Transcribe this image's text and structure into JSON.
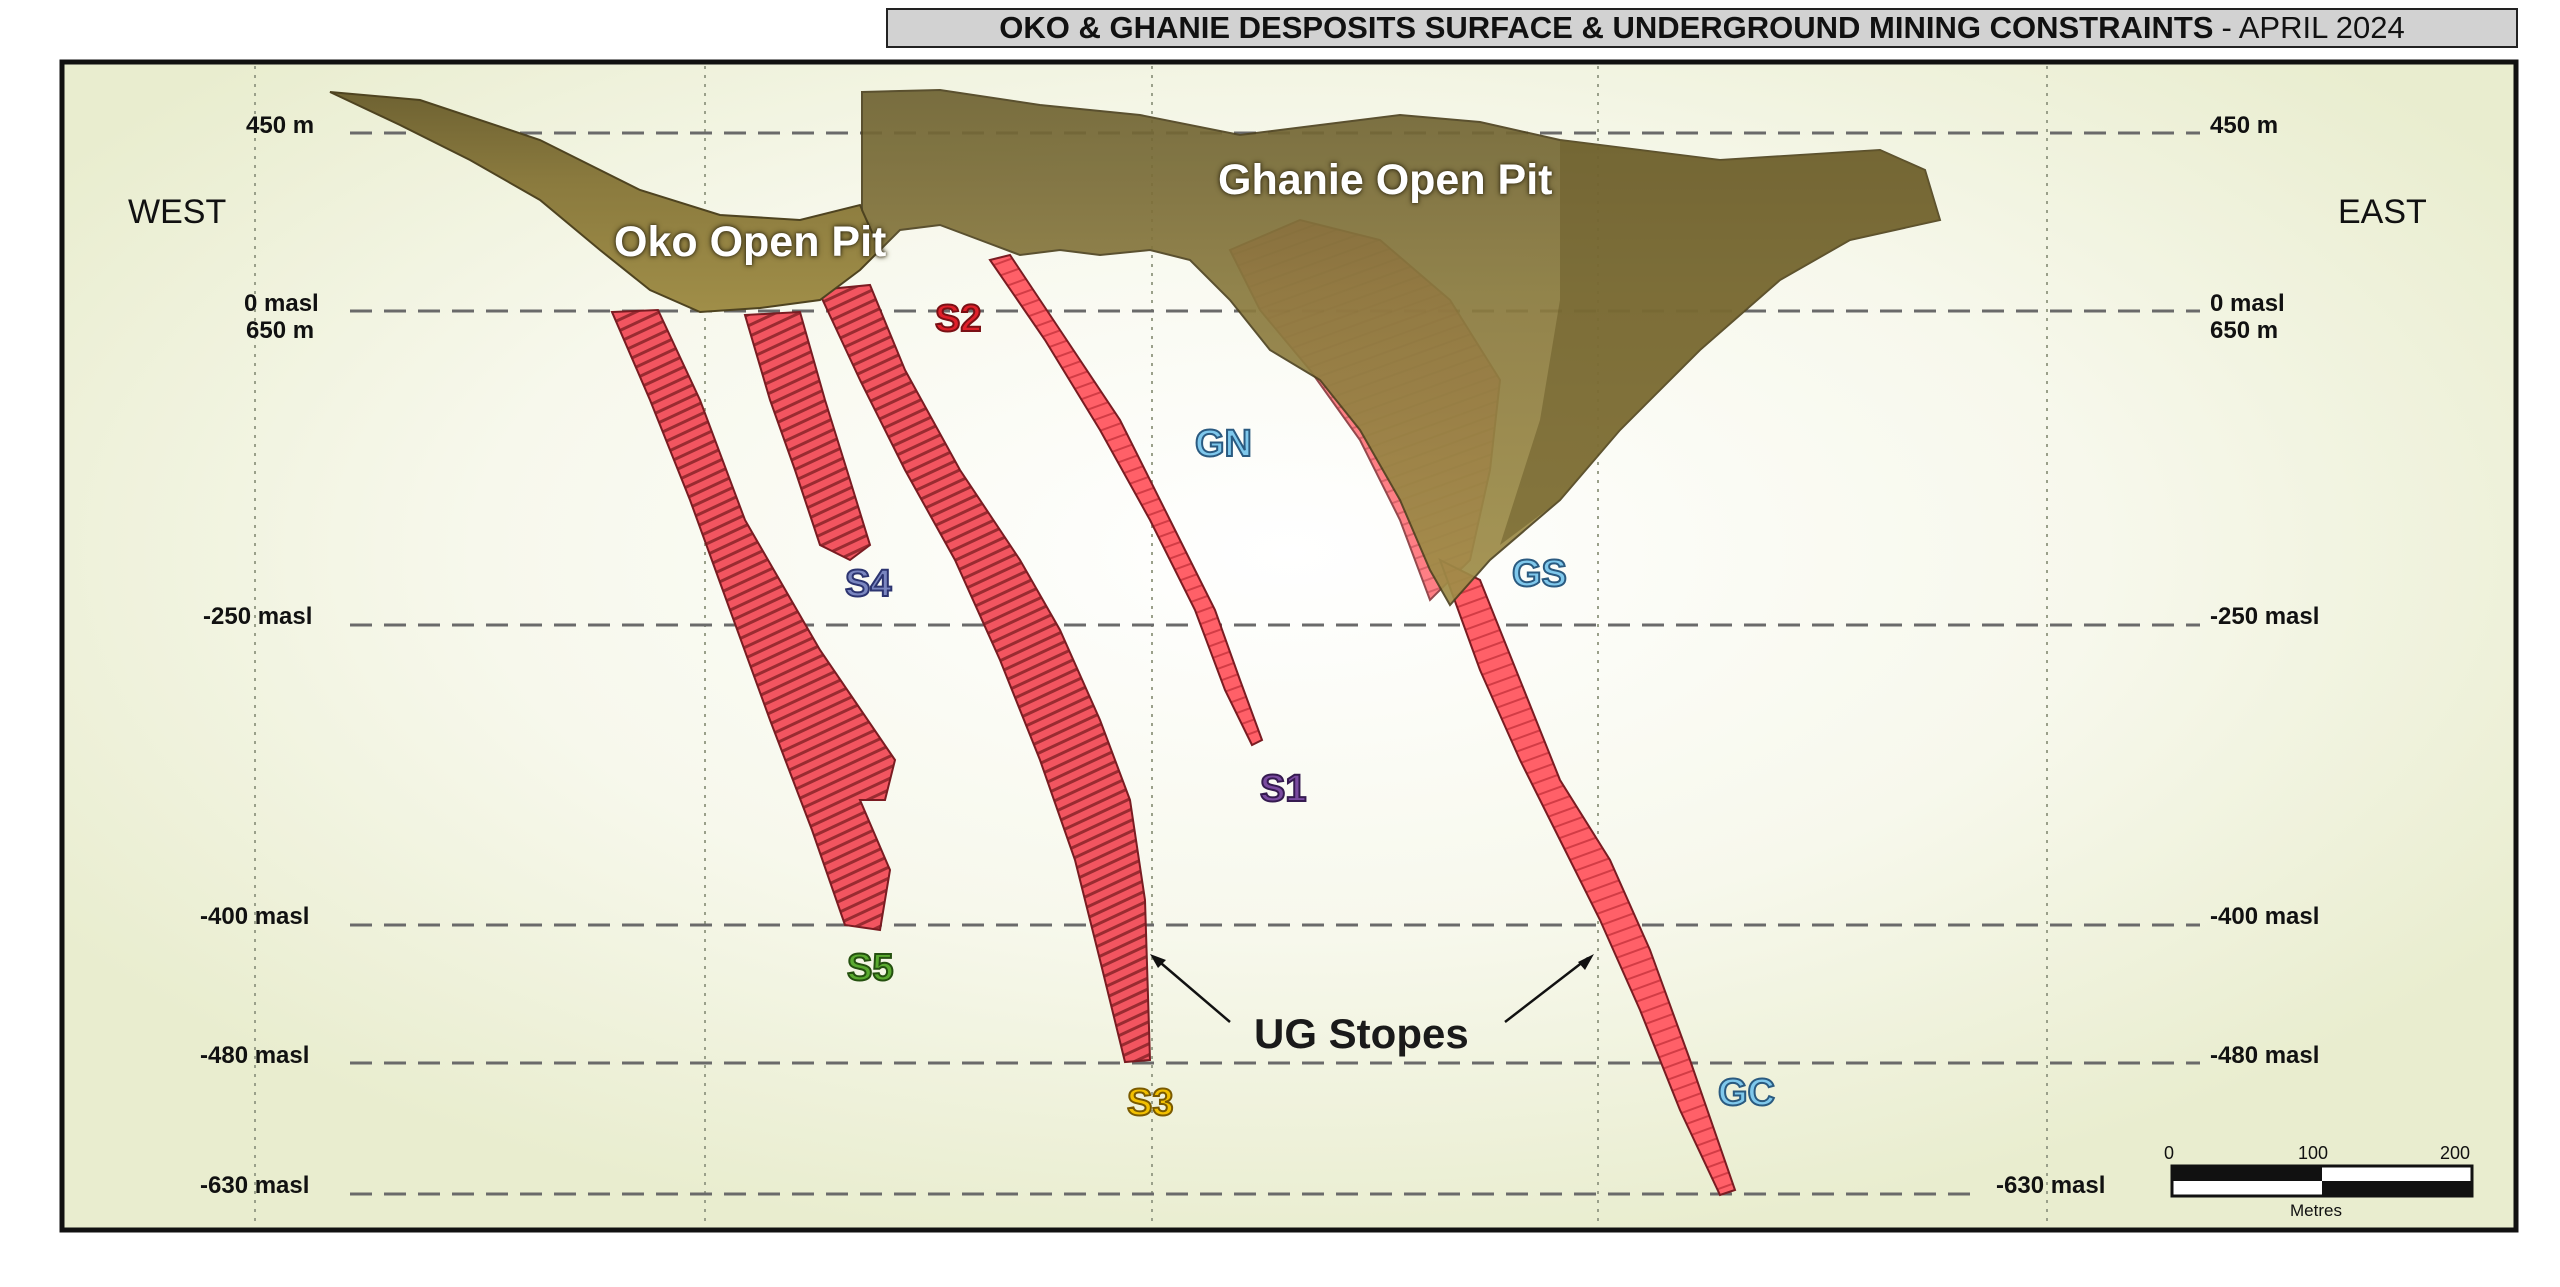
{
  "title": {
    "main": "OKO & GHANIE DESPOSITS SURFACE & UNDERGROUND MINING CONSTRAINTS",
    "date": "- APRIL 2024"
  },
  "direction": {
    "west": "WEST",
    "east": "EAST"
  },
  "levels": {
    "l450": "450 m",
    "l0": "0 masl",
    "l650": "650 m",
    "l250": "-250 masl",
    "l400": "-400 masl",
    "l480": "-480 masl",
    "l630": "-630 masl"
  },
  "pits": {
    "oko": "Oko Open Pit",
    "ghanie": "Ghanie Open Pit"
  },
  "zones": {
    "S1": "S1",
    "S2": "S2",
    "S3": "S3",
    "S4": "S4",
    "S5": "S5",
    "GN": "GN",
    "GS": "GS",
    "GC": "GC"
  },
  "zone_colors": {
    "S1": "#7a4aa0",
    "S2": "#e0202a",
    "S3": "#f2c000",
    "S4": "#7a86c0",
    "S5": "#5aaa30",
    "GN": "#7fc8ec",
    "GS": "#7fc8ec",
    "GC": "#7fc8ec"
  },
  "ug_stopes": "UG Stopes",
  "scale": {
    "zero": "0",
    "mid": "100",
    "max": "200",
    "unit": "Metres"
  },
  "colors": {
    "stope": "#ff5a64",
    "pit": "#8c7a3c",
    "background": "#f3f4e2"
  }
}
